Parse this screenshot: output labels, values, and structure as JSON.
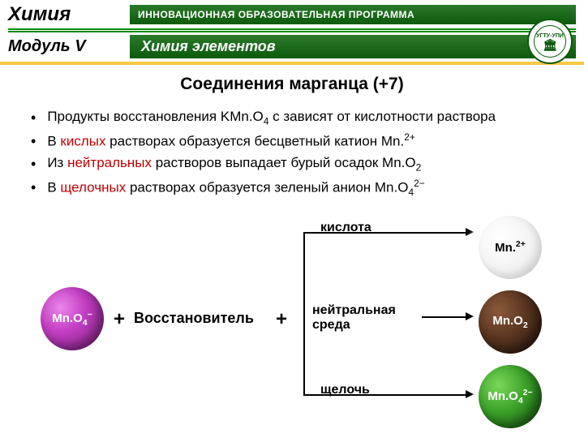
{
  "header": {
    "chem": "Химия",
    "program": "ИННОВАЦИОННАЯ ОБРАЗОВАТЕЛЬНАЯ ПРОГРАММА",
    "module": "Модуль V",
    "section": "Химия элементов",
    "logo_top": "УГТУ-УПИ"
  },
  "title": "Соединения марганца (+7)",
  "bullets": {
    "b1_pre": "Продукты  восстановления KMn.O",
    "b1_post": " с зависят  от кислотности раствора",
    "b2_pre": "В ",
    "b2_acid": "кислых",
    "b2_mid": " растворах образуется бесцветный катион    Mn.",
    "b3_pre": "Из ",
    "b3_neu": "нейтральных",
    "b3_mid": " растворов выпадает бурый осадок    Mn.O",
    "b4_pre": "В ",
    "b4_alk": "щелочных",
    "b4_mid": " растворах образуется зеленый анион       Mn.O"
  },
  "diagram": {
    "reagent_pre": "Mn.O",
    "reagent_sub": "4",
    "reagent_sup": "−",
    "restorer": "Восстановитель",
    "acid": "кислота",
    "neutral1": "нейтральная",
    "neutral2": "среда",
    "alkali": "щелочь",
    "prod1": "Mn.",
    "prod1_sup": "2+",
    "prod2": "Mn.O",
    "prod2_sub": "2",
    "prod3": "Mn.O",
    "prod3_sub": "4",
    "prod3_sup": "2−",
    "plus": "+"
  }
}
